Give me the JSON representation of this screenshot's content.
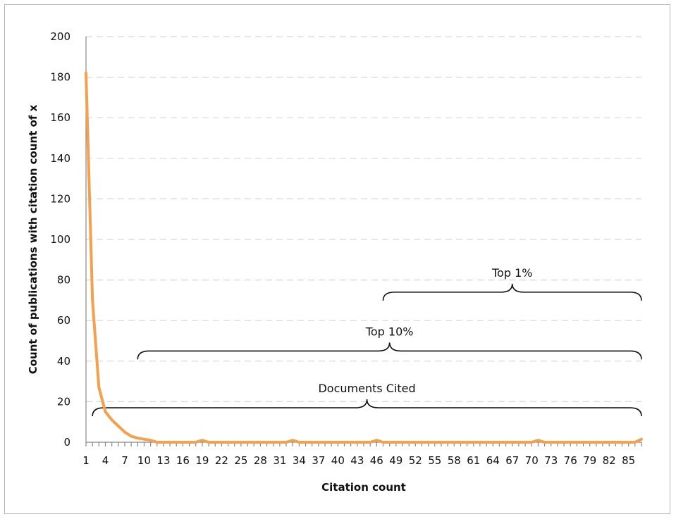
{
  "chart_data": {
    "type": "line",
    "title": "",
    "xlabel": "Citation count",
    "ylabel": "Count of publications with citation count of x",
    "ylim": [
      0,
      200
    ],
    "xlim": [
      1,
      87
    ],
    "y_ticks": [
      0,
      20,
      40,
      60,
      80,
      100,
      120,
      140,
      160,
      180,
      200
    ],
    "x_tick_labels": [
      1,
      4,
      7,
      10,
      13,
      16,
      19,
      22,
      25,
      28,
      31,
      34,
      37,
      40,
      43,
      46,
      49,
      52,
      55,
      58,
      61,
      64,
      67,
      70,
      73,
      76,
      79,
      82,
      85
    ],
    "grid": "horizontal-dashed",
    "line_color": "#f5a04a",
    "series": [
      {
        "name": "",
        "points": [
          [
            1,
            182
          ],
          [
            2,
            70
          ],
          [
            3,
            27
          ],
          [
            4,
            15
          ],
          [
            5,
            11
          ],
          [
            6,
            8
          ],
          [
            7,
            5
          ],
          [
            8,
            3
          ],
          [
            9,
            2
          ],
          [
            10,
            1.5
          ],
          [
            11,
            1
          ],
          [
            12,
            0
          ],
          [
            18,
            0
          ],
          [
            19,
            1
          ],
          [
            20,
            0
          ],
          [
            32,
            0
          ],
          [
            33,
            1
          ],
          [
            34,
            0
          ],
          [
            45,
            0
          ],
          [
            46,
            1
          ],
          [
            47,
            0
          ],
          [
            70,
            0
          ],
          [
            71,
            1
          ],
          [
            72,
            0
          ],
          [
            86,
            0
          ],
          [
            87,
            1.5
          ]
        ]
      }
    ],
    "annotations": [
      {
        "label": "Documents Cited",
        "x_start": 2,
        "x_end": 87,
        "y": 17
      },
      {
        "label": "Top 10%",
        "x_start": 9,
        "x_end": 87,
        "y": 45
      },
      {
        "label": "Top 1%",
        "x_start": 47,
        "x_end": 87,
        "y": 74
      }
    ]
  }
}
